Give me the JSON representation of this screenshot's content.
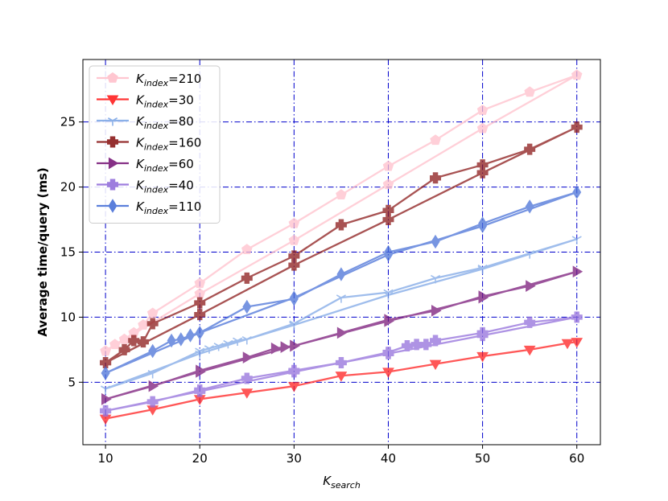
{
  "chart_data": {
    "type": "line",
    "xlabel": "K",
    "xlabel_sub": "search",
    "ylabel": "Average time/query (ms)",
    "xlim": [
      7.6,
      62.5
    ],
    "ylim": [
      0.2,
      29.8
    ],
    "xticks": [
      10,
      20,
      30,
      40,
      50,
      60
    ],
    "yticks": [
      5,
      10,
      15,
      20,
      25
    ],
    "grid": true,
    "grid_color": "#0000cc",
    "legend_position": "top-left",
    "series": [
      {
        "name_main": "K",
        "name_sub": "index",
        "name_rest": "=210",
        "color": "#ffc0cb",
        "marker": "pentagon",
        "x": [
          10,
          11,
          12,
          13,
          14,
          15,
          20,
          25,
          30,
          35,
          40,
          45,
          50,
          55,
          60,
          50,
          40,
          30,
          20,
          10
        ],
        "y": [
          7.4,
          7.9,
          8.3,
          8.8,
          9.4,
          10.3,
          12.6,
          15.2,
          17.2,
          19.4,
          21.6,
          23.6,
          25.9,
          27.3,
          28.6,
          24.5,
          20.2,
          15.9,
          11.8,
          7.4
        ]
      },
      {
        "name_main": "K",
        "name_sub": "index",
        "name_rest": "=30",
        "color": "#ff2020",
        "marker": "triangle-down",
        "x": [
          10,
          15,
          20,
          25,
          30,
          35,
          40,
          45,
          50,
          55,
          59,
          60
        ],
        "y": [
          2.2,
          2.9,
          3.7,
          4.2,
          4.7,
          5.5,
          5.8,
          6.4,
          7.0,
          7.5,
          8.0,
          8.1
        ]
      },
      {
        "name_main": "K",
        "name_sub": "index",
        "name_rest": "=80",
        "color": "#7fa8e6",
        "marker": "tri",
        "x": [
          10,
          15,
          20,
          21,
          22,
          23,
          24,
          25,
          30,
          35,
          40,
          45,
          50,
          55,
          60,
          50,
          40,
          30,
          20,
          10
        ],
        "y": [
          4.5,
          5.7,
          7.4,
          7.6,
          7.8,
          8.0,
          8.2,
          8.3,
          9.5,
          11.5,
          11.9,
          13.0,
          13.8,
          14.9,
          16.0,
          13.7,
          11.7,
          9.4,
          7.2,
          4.5
        ]
      },
      {
        "name_main": "K",
        "name_sub": "index",
        "name_rest": "=160",
        "color": "#8b1a1a",
        "marker": "plus",
        "x": [
          10,
          12,
          13,
          14,
          15,
          20,
          25,
          30,
          35,
          40,
          45,
          50,
          55,
          60,
          50,
          40,
          30,
          20,
          10
        ],
        "y": [
          6.5,
          7.5,
          8.2,
          8.1,
          9.5,
          11.1,
          13.0,
          14.7,
          17.1,
          18.2,
          20.7,
          21.7,
          22.9,
          24.6,
          21.1,
          17.5,
          14.0,
          10.2,
          6.5
        ]
      },
      {
        "name_main": "K",
        "name_sub": "index",
        "name_rest": "=60",
        "color": "#7a1a7a",
        "marker": "triangle-right",
        "x": [
          10,
          15,
          20,
          25,
          28,
          29,
          30,
          35,
          40,
          45,
          50,
          55,
          60,
          50,
          40,
          30,
          20,
          10
        ],
        "y": [
          3.7,
          4.7,
          5.9,
          6.9,
          7.6,
          7.7,
          7.8,
          8.8,
          9.8,
          10.5,
          11.6,
          12.4,
          13.5,
          11.5,
          9.7,
          7.8,
          5.8,
          3.7
        ]
      },
      {
        "name_main": "K",
        "name_sub": "index",
        "name_rest": "=40",
        "color": "#9370db",
        "marker": "plus",
        "x": [
          10,
          15,
          20,
          25,
          30,
          35,
          40,
          42,
          43,
          44,
          45,
          50,
          55,
          60,
          50,
          40,
          30,
          20,
          10
        ],
        "y": [
          2.8,
          3.5,
          4.4,
          5.3,
          5.9,
          6.5,
          7.3,
          7.8,
          7.9,
          7.9,
          8.2,
          8.8,
          9.6,
          10.0,
          8.6,
          7.2,
          5.8,
          4.3,
          2.8
        ]
      },
      {
        "name_main": "K",
        "name_sub": "index",
        "name_rest": "=110",
        "color": "#4a72d8",
        "marker": "diamond",
        "x": [
          10,
          15,
          17,
          18,
          19,
          20,
          25,
          30,
          35,
          40,
          45,
          50,
          55,
          60,
          50,
          40,
          30,
          20,
          10
        ],
        "y": [
          5.7,
          7.4,
          8.2,
          8.3,
          8.6,
          8.8,
          10.8,
          11.4,
          13.3,
          15.0,
          15.8,
          17.2,
          18.5,
          19.6,
          17.0,
          14.8,
          11.5,
          8.8,
          5.7
        ]
      }
    ]
  }
}
